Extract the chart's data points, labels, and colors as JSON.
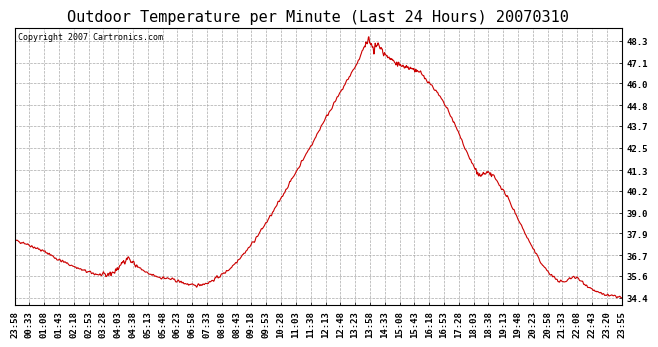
{
  "title": "Outdoor Temperature per Minute (Last 24 Hours) 20070310",
  "copyright": "Copyright 2007 Cartronics.com",
  "line_color": "#cc0000",
  "bg_color": "#ffffff",
  "plot_bg_color": "#ffffff",
  "grid_color": "#aaaaaa",
  "border_color": "#000000",
  "ylim": [
    34.0,
    49.0
  ],
  "yticks": [
    34.4,
    35.6,
    36.7,
    37.9,
    39.0,
    40.2,
    41.3,
    42.5,
    43.7,
    44.8,
    46.0,
    47.1,
    48.3
  ],
  "xtick_labels": [
    "23:58",
    "00:33",
    "01:08",
    "01:43",
    "02:18",
    "02:53",
    "03:28",
    "04:03",
    "04:38",
    "05:13",
    "05:48",
    "06:23",
    "06:58",
    "07:33",
    "08:08",
    "08:43",
    "09:18",
    "09:53",
    "10:28",
    "11:03",
    "11:38",
    "12:13",
    "12:48",
    "13:23",
    "13:58",
    "14:33",
    "15:08",
    "15:43",
    "16:18",
    "16:53",
    "17:28",
    "18:03",
    "18:38",
    "19:13",
    "19:48",
    "20:23",
    "20:58",
    "21:33",
    "22:08",
    "22:43",
    "23:20",
    "23:55"
  ],
  "title_fontsize": 11,
  "copyright_fontsize": 6,
  "tick_fontsize": 6.5,
  "line_width": 0.8,
  "waypoints": [
    [
      0,
      37.5
    ],
    [
      20,
      37.4
    ],
    [
      40,
      37.2
    ],
    [
      60,
      37.0
    ],
    [
      80,
      36.8
    ],
    [
      100,
      36.5
    ],
    [
      120,
      36.3
    ],
    [
      140,
      36.1
    ],
    [
      160,
      35.9
    ],
    [
      180,
      35.75
    ],
    [
      200,
      35.65
    ],
    [
      215,
      35.6
    ],
    [
      230,
      35.7
    ],
    [
      245,
      36.0
    ],
    [
      255,
      36.3
    ],
    [
      265,
      36.5
    ],
    [
      270,
      36.45
    ],
    [
      280,
      36.3
    ],
    [
      290,
      36.1
    ],
    [
      305,
      35.85
    ],
    [
      315,
      35.7
    ],
    [
      330,
      35.6
    ],
    [
      345,
      35.5
    ],
    [
      360,
      35.45
    ],
    [
      380,
      35.35
    ],
    [
      400,
      35.2
    ],
    [
      415,
      35.1
    ],
    [
      425,
      35.05
    ],
    [
      435,
      35.1
    ],
    [
      445,
      35.15
    ],
    [
      455,
      35.2
    ],
    [
      465,
      35.3
    ],
    [
      475,
      35.45
    ],
    [
      490,
      35.65
    ],
    [
      510,
      36.0
    ],
    [
      530,
      36.5
    ],
    [
      550,
      37.0
    ],
    [
      570,
      37.6
    ],
    [
      590,
      38.3
    ],
    [
      610,
      39.0
    ],
    [
      630,
      39.8
    ],
    [
      650,
      40.6
    ],
    [
      665,
      41.2
    ],
    [
      680,
      41.8
    ],
    [
      695,
      42.4
    ],
    [
      710,
      43.0
    ],
    [
      725,
      43.7
    ],
    [
      740,
      44.3
    ],
    [
      755,
      44.9
    ],
    [
      768,
      45.4
    ],
    [
      780,
      45.9
    ],
    [
      790,
      46.3
    ],
    [
      800,
      46.7
    ],
    [
      808,
      47.0
    ],
    [
      815,
      47.3
    ],
    [
      820,
      47.6
    ],
    [
      825,
      47.85
    ],
    [
      830,
      48.1
    ],
    [
      834,
      48.25
    ],
    [
      838,
      48.3
    ],
    [
      842,
      48.2
    ],
    [
      846,
      48.0
    ],
    [
      849,
      47.85
    ],
    [
      853,
      47.95
    ],
    [
      857,
      48.1
    ],
    [
      861,
      48.05
    ],
    [
      865,
      47.9
    ],
    [
      870,
      47.7
    ],
    [
      876,
      47.55
    ],
    [
      882,
      47.4
    ],
    [
      888,
      47.3
    ],
    [
      893,
      47.2
    ],
    [
      898,
      47.15
    ],
    [
      905,
      47.05
    ],
    [
      912,
      46.95
    ],
    [
      920,
      46.9
    ],
    [
      928,
      46.85
    ],
    [
      936,
      46.8
    ],
    [
      944,
      46.75
    ],
    [
      952,
      46.65
    ],
    [
      960,
      46.5
    ],
    [
      970,
      46.3
    ],
    [
      982,
      46.0
    ],
    [
      994,
      45.65
    ],
    [
      1006,
      45.25
    ],
    [
      1018,
      44.8
    ],
    [
      1030,
      44.3
    ],
    [
      1042,
      43.7
    ],
    [
      1054,
      43.1
    ],
    [
      1065,
      42.5
    ],
    [
      1075,
      42.0
    ],
    [
      1083,
      41.6
    ],
    [
      1090,
      41.3
    ],
    [
      1096,
      41.1
    ],
    [
      1102,
      41.0
    ],
    [
      1108,
      41.05
    ],
    [
      1114,
      41.1
    ],
    [
      1119,
      41.15
    ],
    [
      1124,
      41.1
    ],
    [
      1130,
      41.0
    ],
    [
      1136,
      40.85
    ],
    [
      1142,
      40.65
    ],
    [
      1150,
      40.4
    ],
    [
      1158,
      40.1
    ],
    [
      1167,
      39.75
    ],
    [
      1176,
      39.35
    ],
    [
      1186,
      38.9
    ],
    [
      1196,
      38.4
    ],
    [
      1208,
      37.85
    ],
    [
      1220,
      37.3
    ],
    [
      1232,
      36.8
    ],
    [
      1245,
      36.3
    ],
    [
      1258,
      35.9
    ],
    [
      1270,
      35.6
    ],
    [
      1280,
      35.4
    ],
    [
      1290,
      35.3
    ],
    [
      1300,
      35.25
    ],
    [
      1308,
      35.35
    ],
    [
      1316,
      35.5
    ],
    [
      1322,
      35.55
    ],
    [
      1328,
      35.5
    ],
    [
      1334,
      35.4
    ],
    [
      1340,
      35.3
    ],
    [
      1346,
      35.2
    ],
    [
      1352,
      35.1
    ],
    [
      1360,
      34.95
    ],
    [
      1368,
      34.85
    ],
    [
      1375,
      34.75
    ],
    [
      1382,
      34.65
    ],
    [
      1390,
      34.6
    ],
    [
      1400,
      34.55
    ],
    [
      1410,
      34.5
    ],
    [
      1420,
      34.48
    ],
    [
      1430,
      34.46
    ],
    [
      1436,
      34.4
    ]
  ]
}
